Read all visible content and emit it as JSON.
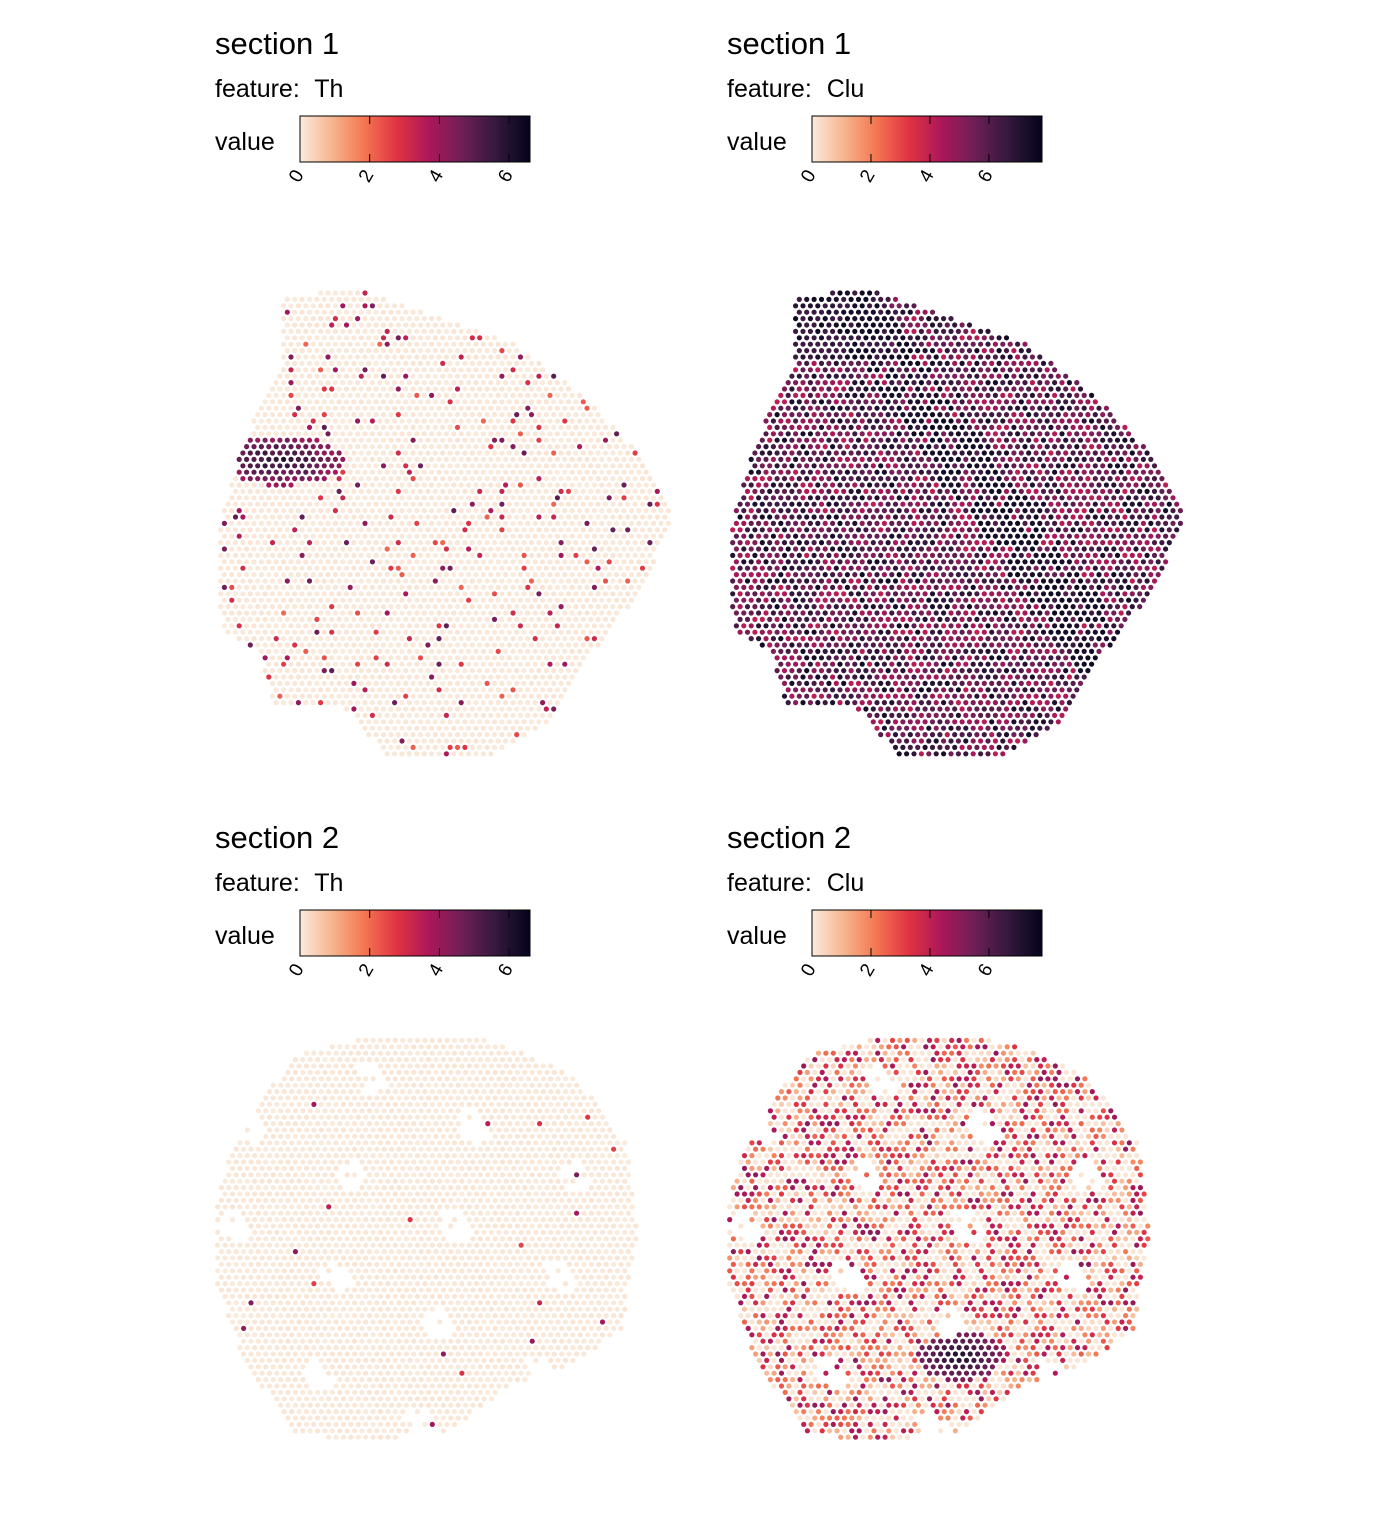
{
  "chart_data": [
    {
      "type": "scatter",
      "title": "section 1",
      "subtitle_prefix": "feature:",
      "feature": "Th",
      "legend": {
        "label": "value",
        "ticks": [
          "0",
          "2",
          "4",
          "6"
        ],
        "tick_values": [
          0,
          2,
          4,
          6
        ],
        "range": [
          0,
          6.6
        ],
        "palette": "rocket-reversed"
      },
      "summary": {
        "background_value": 0.1,
        "hotspot_center": [
          -0.72,
          0.28
        ],
        "hotspot_peak_value": 6.5,
        "scattered_spot_value_range": [
          2,
          5
        ]
      }
    },
    {
      "type": "scatter",
      "title": "section 1",
      "subtitle_prefix": "feature:",
      "feature": "Clu",
      "legend": {
        "label": "value",
        "ticks": [
          "0",
          "2",
          "4",
          "6"
        ],
        "tick_values": [
          0,
          2,
          4,
          6
        ],
        "range": [
          0,
          7.8
        ],
        "palette": "rocket-reversed"
      },
      "summary": {
        "typical_value_range": [
          4,
          7.5
        ],
        "dark_band_value": 7.2
      }
    },
    {
      "type": "scatter",
      "title": "section 2",
      "subtitle_prefix": "feature:",
      "feature": "Th",
      "legend": {
        "label": "value",
        "ticks": [
          "0",
          "2",
          "4",
          "6"
        ],
        "tick_values": [
          0,
          2,
          4,
          6
        ],
        "range": [
          0,
          6.6
        ],
        "palette": "rocket-reversed"
      },
      "summary": {
        "background_value": 0.1,
        "sparse_spot_value_range": [
          2.5,
          4.5
        ]
      }
    },
    {
      "type": "scatter",
      "title": "section 2",
      "subtitle_prefix": "feature:",
      "feature": "Clu",
      "legend": {
        "label": "value",
        "ticks": [
          "0",
          "2",
          "4",
          "6"
        ],
        "tick_values": [
          0,
          2,
          4,
          6
        ],
        "range": [
          0,
          7.8
        ],
        "palette": "rocket-reversed"
      },
      "summary": {
        "typical_value_range": [
          0,
          5
        ],
        "hotspot_center": [
          0.1,
          -0.58
        ],
        "hotspot_peak_value": 7.3
      }
    }
  ]
}
